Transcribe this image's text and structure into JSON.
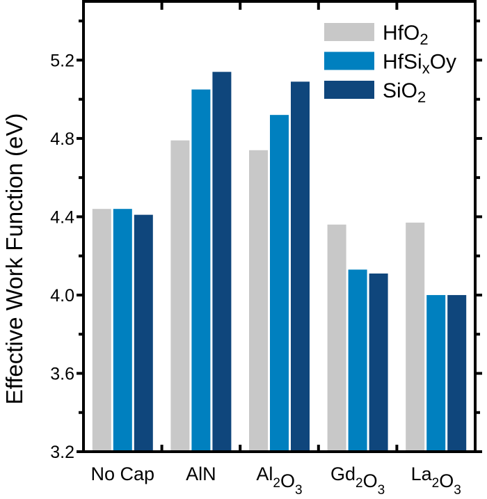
{
  "chart_data": {
    "type": "bar",
    "title": "",
    "xlabel": "",
    "ylabel": "Effective Work Function (eV)",
    "ylim": [
      3.2,
      5.5
    ],
    "yticks": [
      "3.2",
      "3.6",
      "4.0",
      "4.4",
      "4.8",
      "5.2"
    ],
    "grid": false,
    "legend_position": "top-right",
    "categories": [
      {
        "base": "No Cap",
        "parts": [
          [
            "No Cap",
            ""
          ]
        ]
      },
      {
        "base": "AlN",
        "parts": [
          [
            "AlN",
            ""
          ]
        ]
      },
      {
        "base": "Al2O3",
        "parts": [
          [
            "Al",
            "2"
          ],
          [
            "O",
            "3"
          ]
        ]
      },
      {
        "base": "Gd2O3",
        "parts": [
          [
            "Gd",
            "2"
          ],
          [
            "O",
            "3"
          ]
        ]
      },
      {
        "base": "La2O3",
        "parts": [
          [
            "La",
            "2"
          ],
          [
            "O",
            "3"
          ]
        ]
      }
    ],
    "series": [
      {
        "name": "HfO2",
        "label_main": "HfO",
        "label_sub": "2",
        "label_tail": "",
        "color": "#c8c8c8",
        "values": [
          4.44,
          4.79,
          4.74,
          4.36,
          4.37
        ]
      },
      {
        "name": "HfSixOy",
        "label_main": "HfSi",
        "label_sub": "x",
        "label_tail": "Oy",
        "color": "#0080bf",
        "values": [
          4.44,
          5.05,
          4.92,
          4.13,
          4.0
        ]
      },
      {
        "name": "SiO2",
        "label_main": "SiO",
        "label_sub": "2",
        "label_tail": "",
        "color": "#0f467c",
        "values": [
          4.41,
          5.14,
          5.09,
          4.11,
          4.0
        ]
      }
    ]
  }
}
